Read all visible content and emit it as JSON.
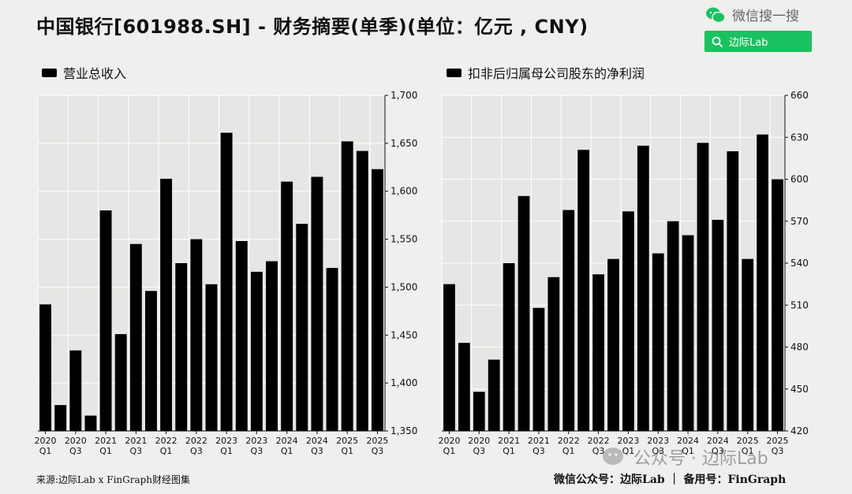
{
  "title": "中国银行[601988.SH] - 财务摘要(单季)(单位：亿元 , CNY)",
  "wechat": {
    "label": "微信搜一搜",
    "search_text": "边际Lab"
  },
  "footer": {
    "source": "来源:边际Lab x FinGraph财经图集",
    "account": "微信公众号：边际Lab  ｜  备用号：FinGraph"
  },
  "watermark": "公众号 · 边际Lab",
  "colors": {
    "bar": "#000000",
    "background": "#efefed",
    "accent": "#19c25f",
    "grid": "#ffffff"
  },
  "chart_data": [
    {
      "type": "bar",
      "title": "营业总收入",
      "categories": [
        "2020 Q1",
        "2020 Q2",
        "2020 Q3",
        "2020 Q4",
        "2021 Q1",
        "2021 Q2",
        "2021 Q3",
        "2021 Q4",
        "2022 Q1",
        "2022 Q2",
        "2022 Q3",
        "2022 Q4",
        "2023 Q1",
        "2023 Q2",
        "2023 Q3",
        "2023 Q4",
        "2024 Q1",
        "2024 Q2",
        "2024 Q3",
        "2024 Q4",
        "2025 Q1",
        "2025 Q2",
        "2025 Q3"
      ],
      "x_tick_labels": [
        [
          "2020",
          "Q1"
        ],
        [
          "2020",
          "Q3"
        ],
        [
          "2021",
          "Q1"
        ],
        [
          "2021",
          "Q3"
        ],
        [
          "2022",
          "Q1"
        ],
        [
          "2022",
          "Q3"
        ],
        [
          "2023",
          "Q1"
        ],
        [
          "2023",
          "Q3"
        ],
        [
          "2024",
          "Q1"
        ],
        [
          "2024",
          "Q3"
        ],
        [
          "2025",
          "Q1"
        ],
        [
          "2025",
          "Q3"
        ]
      ],
      "values": [
        1482,
        1377,
        1434,
        1366,
        1580,
        1451,
        1545,
        1496,
        1613,
        1525,
        1550,
        1503,
        1661,
        1548,
        1516,
        1527,
        1610,
        1566,
        1615,
        1520,
        1652,
        1642,
        1623
      ],
      "ylim": [
        1350,
        1700
      ],
      "yticks": [
        1350,
        1400,
        1450,
        1500,
        1550,
        1600,
        1650,
        1700
      ],
      "ytick_labels": [
        "1,350",
        "1,400",
        "1,450",
        "1,500",
        "1,550",
        "1,600",
        "1,650",
        "1,700"
      ],
      "grid": true
    },
    {
      "type": "bar",
      "title": "扣非后归属母公司股东的净利润",
      "categories": [
        "2020 Q1",
        "2020 Q2",
        "2020 Q3",
        "2020 Q4",
        "2021 Q1",
        "2021 Q2",
        "2021 Q3",
        "2021 Q4",
        "2022 Q1",
        "2022 Q2",
        "2022 Q3",
        "2022 Q4",
        "2023 Q1",
        "2023 Q2",
        "2023 Q3",
        "2023 Q4",
        "2024 Q1",
        "2024 Q2",
        "2024 Q3",
        "2024 Q4",
        "2025 Q1",
        "2025 Q2",
        "2025 Q3"
      ],
      "x_tick_labels": [
        [
          "2020",
          "Q1"
        ],
        [
          "2020",
          "Q3"
        ],
        [
          "2021",
          "Q1"
        ],
        [
          "2021",
          "Q3"
        ],
        [
          "2022",
          "Q1"
        ],
        [
          "2022",
          "Q3"
        ],
        [
          "2023",
          "Q1"
        ],
        [
          "2023",
          "Q3"
        ],
        [
          "2024",
          "Q1"
        ],
        [
          "2024",
          "Q3"
        ],
        [
          "2025",
          "Q1"
        ],
        [
          "2025",
          "Q3"
        ]
      ],
      "values": [
        525,
        483,
        448,
        471,
        540,
        588,
        508,
        530,
        578,
        621,
        532,
        543,
        577,
        624,
        547,
        570,
        560,
        626,
        571,
        620,
        543,
        632,
        600
      ],
      "ylim": [
        420,
        660
      ],
      "yticks": [
        420,
        450,
        480,
        510,
        540,
        570,
        600,
        630,
        660
      ],
      "ytick_labels": [
        "420",
        "450",
        "480",
        "510",
        "540",
        "570",
        "600",
        "630",
        "660"
      ],
      "grid": true
    }
  ]
}
